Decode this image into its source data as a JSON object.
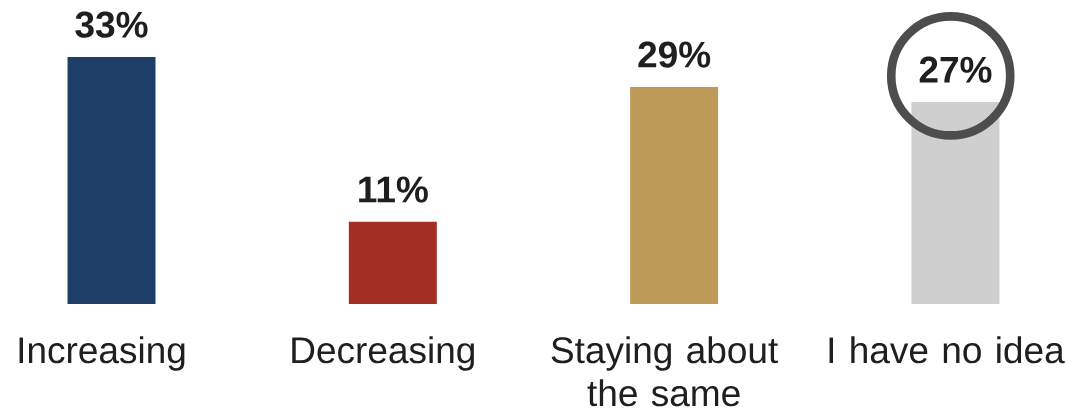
{
  "chart_data": {
    "type": "bar",
    "categories": [
      "Increasing",
      "Decreasing",
      "Staying about the same",
      "I have no idea"
    ],
    "values": [
      33,
      11,
      29,
      27
    ],
    "colors": [
      "#1e3e68",
      "#a32e24",
      "#be9a58",
      "#cfcfcf"
    ],
    "value_labels": [
      "33%",
      "11%",
      "29%",
      "27%"
    ]
  }
}
